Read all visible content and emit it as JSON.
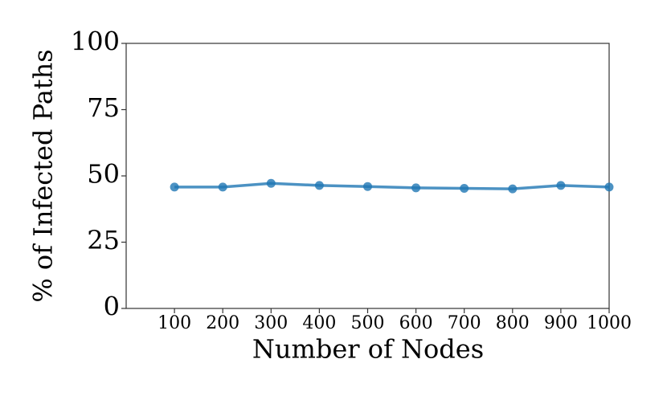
{
  "chart_data": {
    "type": "line",
    "x_label": "Number of Nodes",
    "y_label": "% of Infected Paths",
    "x": [
      100,
      200,
      300,
      400,
      500,
      600,
      700,
      800,
      900,
      1000
    ],
    "series": [
      {
        "color": "#1f77b4",
        "values": [
          45.8,
          45.8,
          47.2,
          46.4,
          46.0,
          45.5,
          45.3,
          45.1,
          46.4,
          45.8
        ]
      }
    ],
    "xlim": [
      0,
      1000
    ],
    "xticks": [
      100,
      200,
      300,
      400,
      500,
      600,
      700,
      800,
      900,
      1000
    ],
    "ylim": [
      0,
      100
    ],
    "yticks": [
      0,
      25,
      50,
      75,
      100
    ],
    "grid": false
  }
}
